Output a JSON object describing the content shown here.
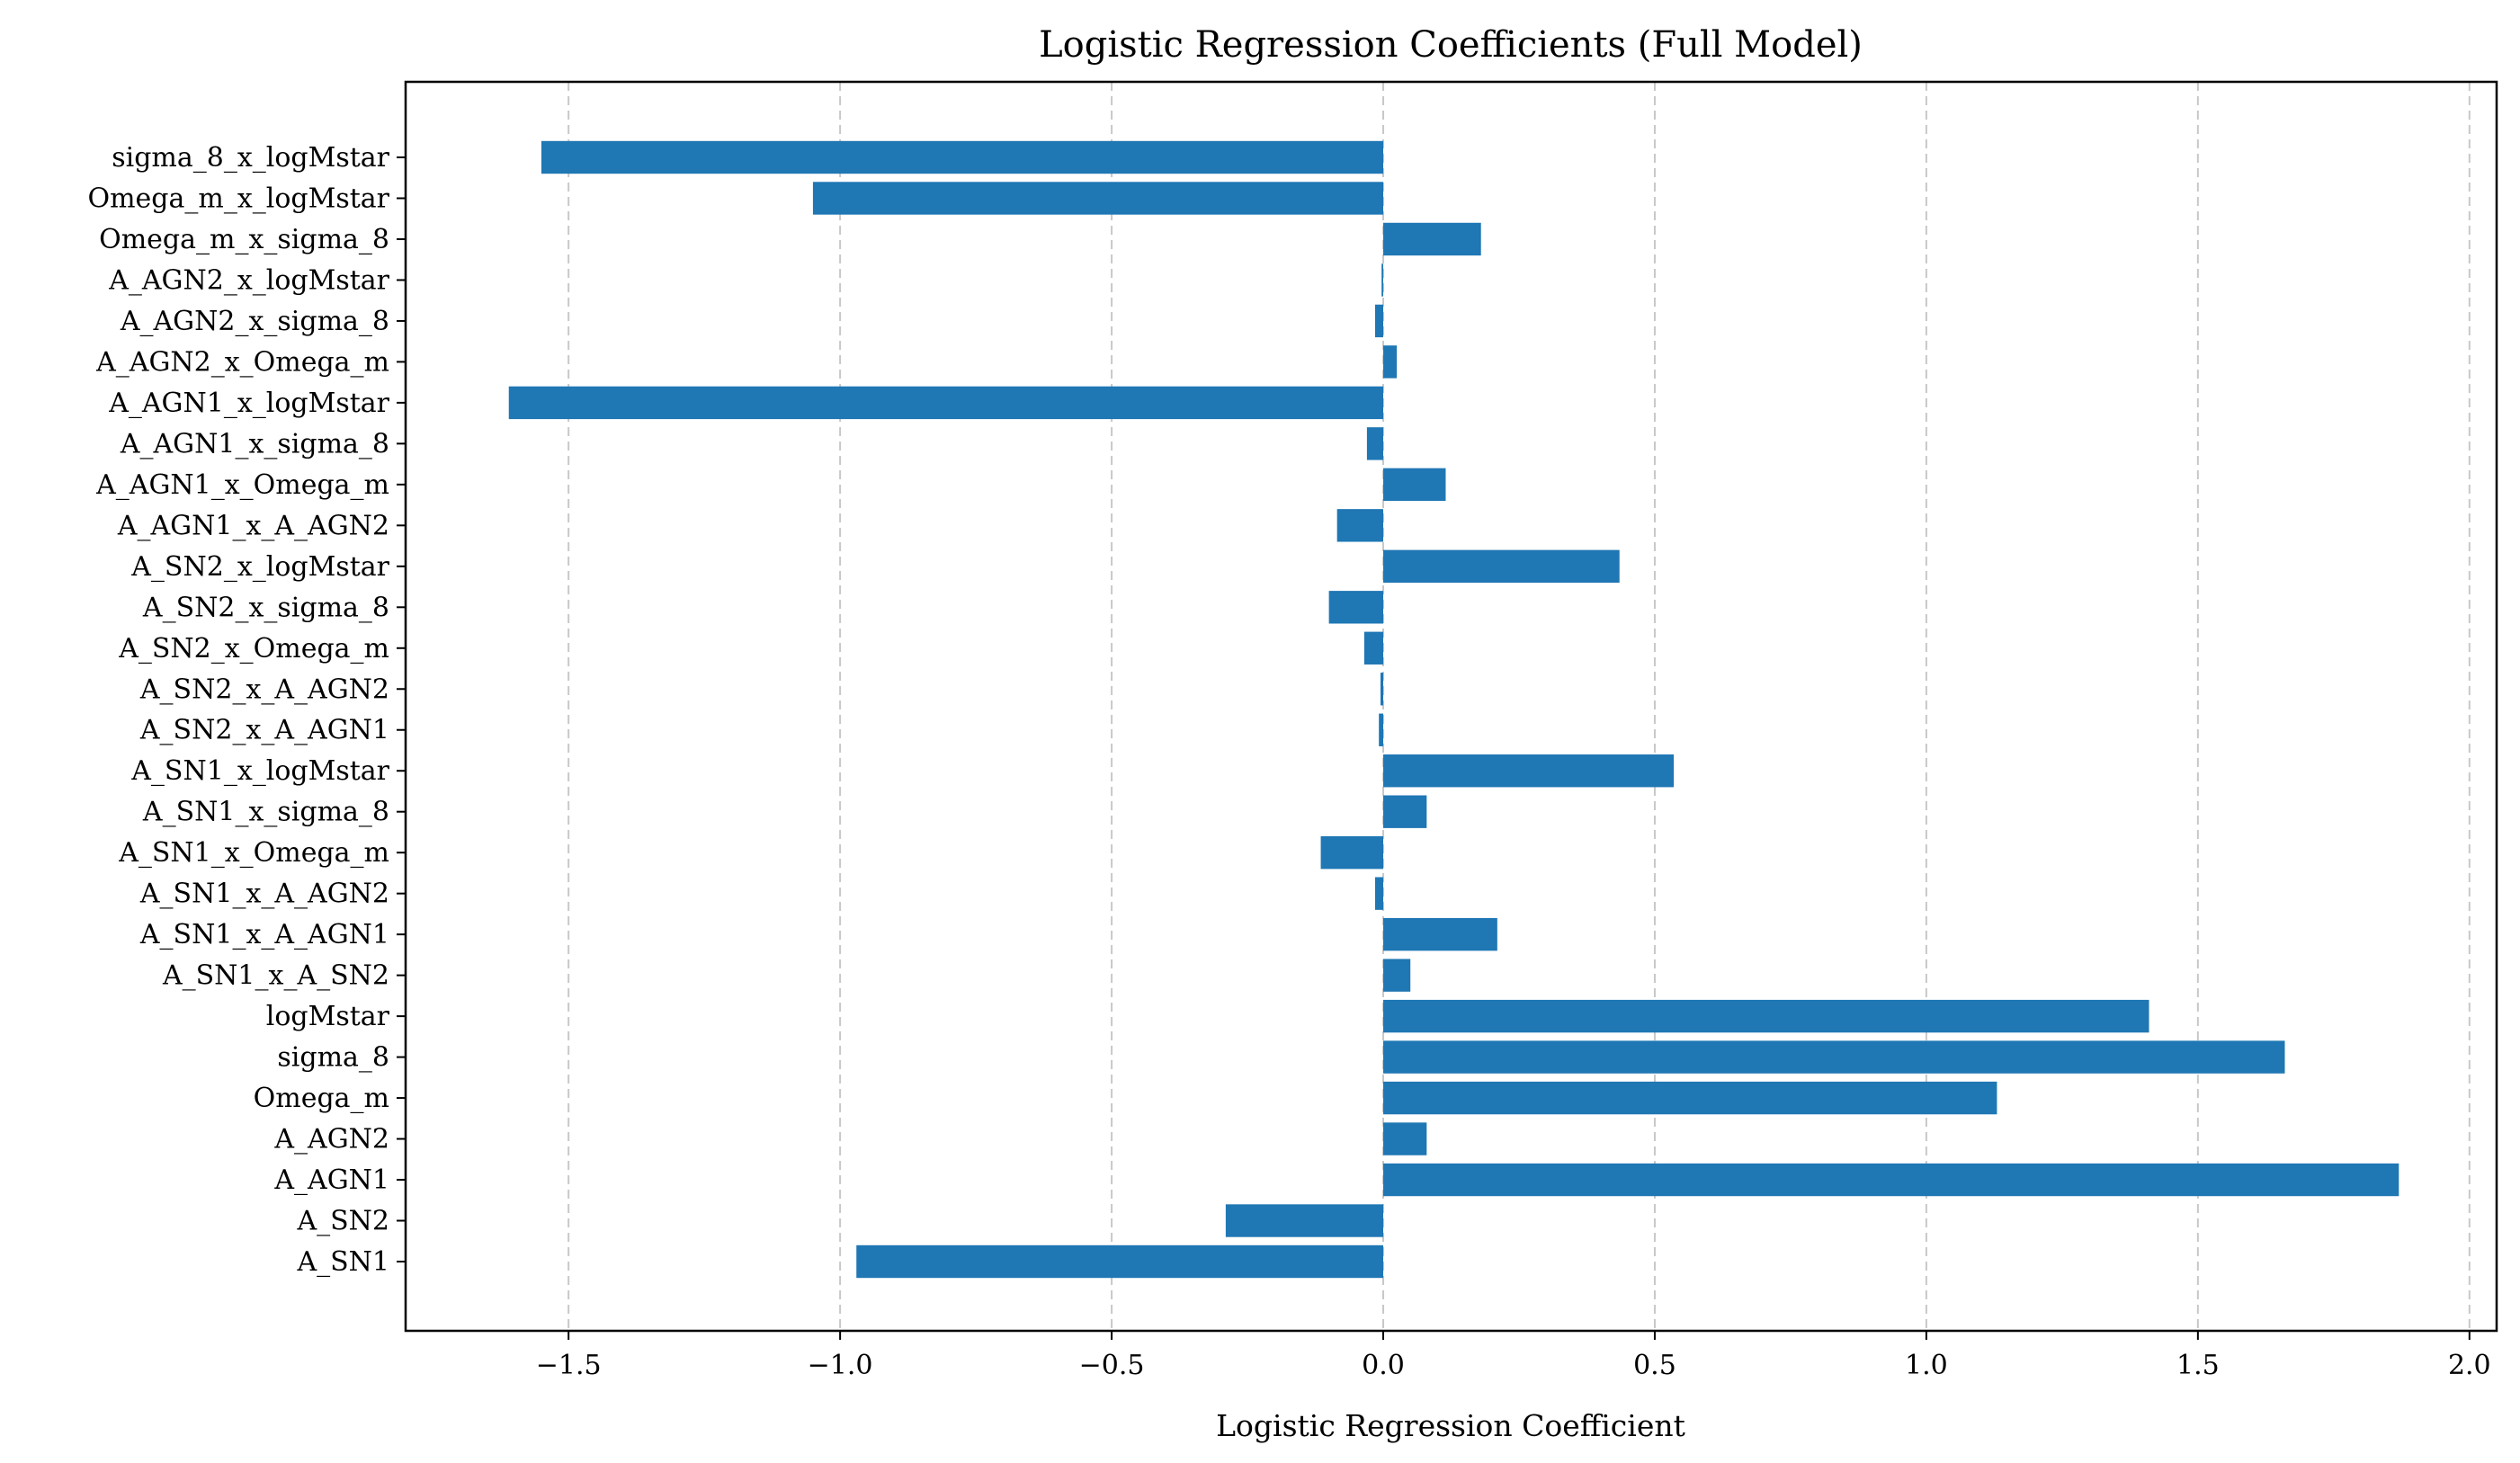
{
  "chart_data": {
    "type": "bar",
    "orientation": "horizontal",
    "title": "Logistic Regression Coefficients (Full Model)",
    "xlabel": "Logistic Regression Coefficient",
    "ylabel": "",
    "xlim": [
      -1.8,
      2.05
    ],
    "xticks": [
      -1.5,
      -1.0,
      -0.5,
      0.0,
      0.5,
      1.0,
      1.5,
      2.0
    ],
    "xtick_labels": [
      "−1.5",
      "−1.0",
      "−0.5",
      "0.0",
      "0.5",
      "1.0",
      "1.5",
      "2.0"
    ],
    "grid": "vertical dashed",
    "bar_color": "#1f77b4",
    "categories": [
      "A_SN1",
      "A_SN2",
      "A_AGN1",
      "A_AGN2",
      "Omega_m",
      "sigma_8",
      "logMstar",
      "A_SN1_x_A_SN2",
      "A_SN1_x_A_AGN1",
      "A_SN1_x_A_AGN2",
      "A_SN1_x_Omega_m",
      "A_SN1_x_sigma_8",
      "A_SN1_x_logMstar",
      "A_SN2_x_A_AGN1",
      "A_SN2_x_A_AGN2",
      "A_SN2_x_Omega_m",
      "A_SN2_x_sigma_8",
      "A_SN2_x_logMstar",
      "A_AGN1_x_A_AGN2",
      "A_AGN1_x_Omega_m",
      "A_AGN1_x_sigma_8",
      "A_AGN1_x_logMstar",
      "A_AGN2_x_Omega_m",
      "A_AGN2_x_sigma_8",
      "A_AGN2_x_logMstar",
      "Omega_m_x_sigma_8",
      "Omega_m_x_logMstar",
      "sigma_8_x_logMstar"
    ],
    "category_labels": [
      "A_SN1",
      "A_SN2",
      "A_AGN1",
      "A_AGN2",
      "Omega_m",
      "sigma_8",
      "logMstar",
      "A_SN1_x_A_SN2",
      "A_SN1_x_A_AGN1",
      "A_SN1_x_A_AGN2",
      "A_SN1_x_Omega_m",
      "A_SN1_x_sigma_8",
      "A_SN1_x_logMstar",
      "A_SN2_x_A_AGN1",
      "A_SN2_x_A_AGN2",
      "A_SN2_x_Omega_m",
      "A_SN2_x_sigma_8",
      "A_SN2_x_logMstar",
      "A_AGN1_x_A_AGN2",
      "A_AGN1_x_Omega_m",
      "A_AGN1_x_sigma_8",
      "A_AGN1_x_logMstar",
      "A_AGN2_x_Omega_m",
      "A_AGN2_x_sigma_8",
      "A_AGN2_x_logMstar",
      "Omega_m_x_sigma_8",
      "Omega_m_x_logMstar",
      "sigma_8_x_logMstar"
    ],
    "values": [
      -0.97,
      -0.29,
      1.87,
      0.08,
      1.13,
      1.66,
      1.41,
      0.05,
      0.21,
      -0.015,
      -0.115,
      0.08,
      0.535,
      -0.008,
      -0.005,
      -0.035,
      -0.1,
      0.435,
      -0.085,
      0.115,
      -0.03,
      -1.61,
      0.025,
      -0.015,
      -0.003,
      0.18,
      -1.05,
      -1.55
    ]
  }
}
